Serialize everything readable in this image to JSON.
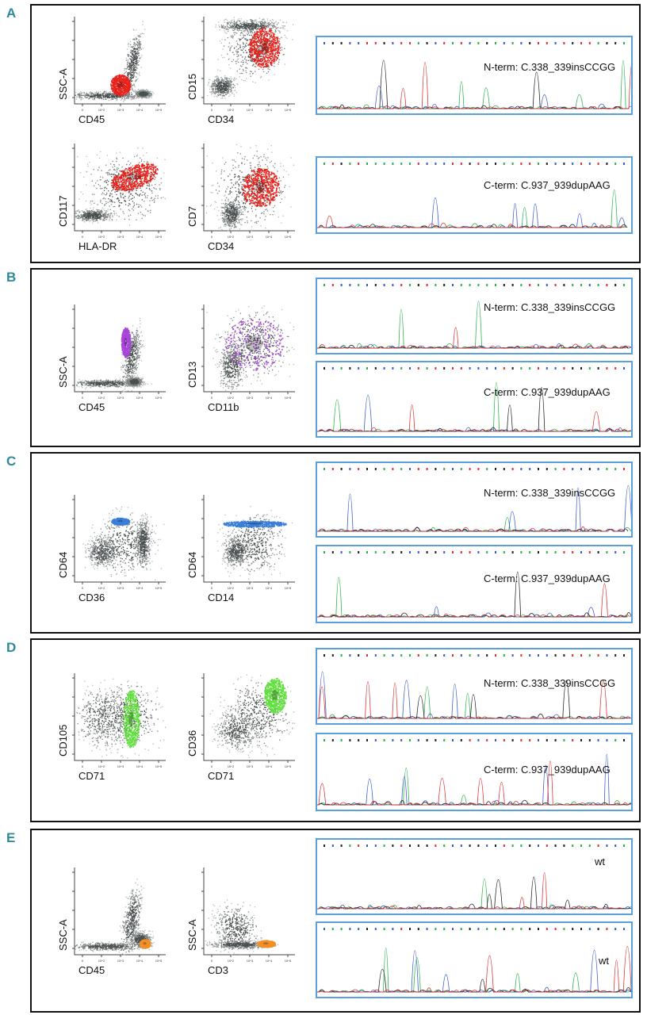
{
  "colors": {
    "letter": "#2f8a9a",
    "chrom_border": "#5aa0dc",
    "cloud": "#8a8f8f",
    "bases": {
      "A": "#2bb34a",
      "C": "#3a5bd0",
      "G": "#222222",
      "T": "#e03030"
    }
  },
  "tick_labels": [
    "0",
    "10^2",
    "10^3",
    "10^4",
    "10^5"
  ],
  "panels": [
    {
      "letter": "A",
      "plots": [
        {
          "x": "CD45",
          "y": "SSC-A",
          "gate": "#e8231c"
        },
        {
          "x": "CD34",
          "y": "CD15",
          "gate": "#e8231c"
        },
        {
          "x": "HLA-DR",
          "y": "CD117",
          "gate": "#e8231c"
        },
        {
          "x": "CD34",
          "y": "CD7",
          "gate": "#e8231c"
        }
      ],
      "seqs": [
        {
          "label": "N-term: C.338_339insCCGG"
        },
        {
          "label": "C-term: C.937_939dupAAG"
        }
      ]
    },
    {
      "letter": "B",
      "plots": [
        {
          "x": "CD45",
          "y": "SSC-A",
          "gate": "#a845d8"
        },
        {
          "x": "CD11b",
          "y": "CD13",
          "gate": "#a845d8"
        }
      ],
      "seqs": [
        {
          "label": "N-term: C.338_339insCCGG"
        },
        {
          "label": "C-term: C.937_939dupAAG"
        }
      ]
    },
    {
      "letter": "C",
      "plots": [
        {
          "x": "CD36",
          "y": "CD64",
          "gate": "#3a7fd8"
        },
        {
          "x": "CD14",
          "y": "CD64",
          "gate": "#3a7fd8"
        }
      ],
      "seqs": [
        {
          "label": "N-term: C.338_339insCCGG"
        },
        {
          "label": "C-term: C.937_939dupAAG"
        }
      ]
    },
    {
      "letter": "D",
      "plots": [
        {
          "x": "CD71",
          "y": "CD105",
          "gate": "#5fe03a"
        },
        {
          "x": "CD71",
          "y": "CD36",
          "gate": "#5fe03a"
        }
      ],
      "seqs": [
        {
          "label": "N-term: C.338_339insCCGG"
        },
        {
          "label": "C-term: C.937_939dupAAG"
        }
      ]
    },
    {
      "letter": "E",
      "plots": [
        {
          "x": "CD45",
          "y": "SSC-A",
          "gate": "#f0902a"
        },
        {
          "x": "CD3",
          "y": "SSC-A",
          "gate": "#f0902a"
        }
      ],
      "seqs": [
        {
          "label": "wt"
        },
        {
          "label": "wt"
        }
      ]
    }
  ]
}
